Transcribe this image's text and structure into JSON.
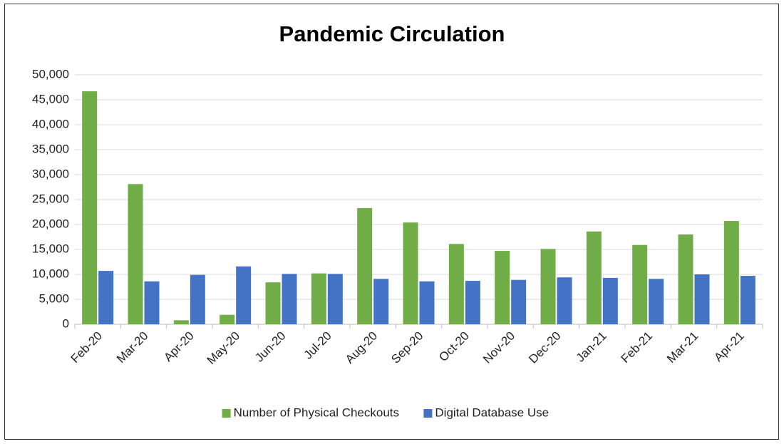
{
  "chart_data": {
    "type": "bar",
    "title": "Pandemic Circulation",
    "categories": [
      "Feb-20",
      "Mar-20",
      "Apr-20",
      "May-20",
      "Jun-20",
      "Jul-20",
      "Aug-20",
      "Sep-20",
      "Oct-20",
      "Nov-20",
      "Dec-20",
      "Jan-21",
      "Feb-21",
      "Mar-21",
      "Apr-21"
    ],
    "series": [
      {
        "name": "Number of Physical Checkouts",
        "color": "#70ad47",
        "values": [
          46700,
          28100,
          800,
          1900,
          8400,
          10200,
          23300,
          20400,
          16100,
          14700,
          15100,
          18600,
          15900,
          18000,
          20700
        ]
      },
      {
        "name": "Digital Database Use",
        "color": "#4472c4",
        "values": [
          10700,
          8600,
          9900,
          11600,
          10100,
          10100,
          9100,
          8600,
          8700,
          8900,
          9400,
          9300,
          9100,
          10000,
          9700
        ]
      }
    ],
    "ylim": [
      0,
      50000
    ],
    "yticks": [
      0,
      {
        "value": 5000,
        "label": "5,000"
      },
      {
        "value": 10000,
        "label": "10,000"
      },
      {
        "value": 15000,
        "label": "15,000"
      },
      {
        "value": 20000,
        "label": "20,000"
      },
      {
        "value": 25000,
        "label": "25,000"
      },
      {
        "value": 30000,
        "label": "30,000"
      },
      {
        "value": 35000,
        "label": "35,000"
      },
      {
        "value": 40000,
        "label": "40,000"
      },
      {
        "value": 45000,
        "label": "45,000"
      },
      {
        "value": 50000,
        "label": "50,000"
      }
    ],
    "grid": true,
    "legend": "bottom"
  }
}
